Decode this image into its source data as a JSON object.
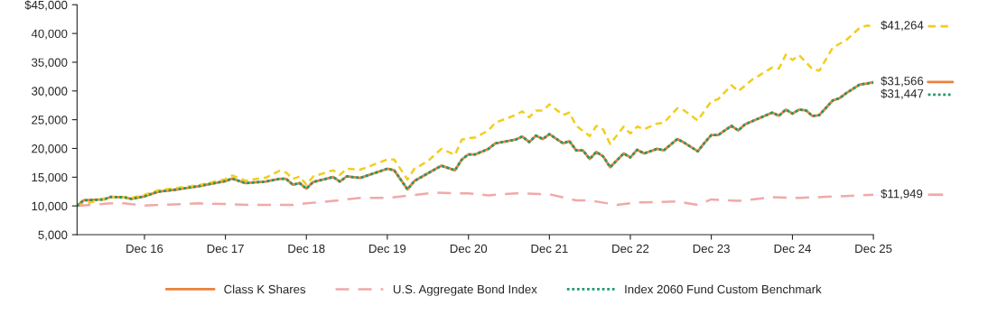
{
  "chart_data": {
    "type": "line",
    "xlim": [
      "2016-02",
      "2025-12"
    ],
    "xticks": [
      {
        "value": "2016-12",
        "label": "Dec 16"
      },
      {
        "value": "2017-12",
        "label": "Dec 17"
      },
      {
        "value": "2018-12",
        "label": "Dec 18"
      },
      {
        "value": "2019-12",
        "label": "Dec 19"
      },
      {
        "value": "2020-12",
        "label": "Dec 20"
      },
      {
        "value": "2021-12",
        "label": "Dec 21"
      },
      {
        "value": "2022-12",
        "label": "Dec 22"
      },
      {
        "value": "2023-12",
        "label": "Dec 23"
      },
      {
        "value": "2024-12",
        "label": "Dec 24"
      },
      {
        "value": "2025-12",
        "label": "Dec 25"
      }
    ],
    "ylim": [
      5000,
      45000
    ],
    "yticks": [
      {
        "value": 5000,
        "label": "5,000"
      },
      {
        "value": 10000,
        "label": "10,000"
      },
      {
        "value": 15000,
        "label": "15,000"
      },
      {
        "value": 20000,
        "label": "20,000"
      },
      {
        "value": 25000,
        "label": "25,000"
      },
      {
        "value": 30000,
        "label": "30,000"
      },
      {
        "value": 35000,
        "label": "35,000"
      },
      {
        "value": 40000,
        "label": "40,000"
      },
      {
        "value": 45000,
        "label": "$45,000"
      }
    ],
    "grid": false,
    "legend": "bottom",
    "series": [
      {
        "name": "Class K Shares",
        "color": "#e8823c",
        "line_style": "solid",
        "x": [
          "2016-02",
          "2016-03",
          "2016-06",
          "2016-07",
          "2016-09",
          "2016-10",
          "2016-12",
          "2017-02",
          "2017-05",
          "2017-08",
          "2017-12",
          "2018-01",
          "2018-03",
          "2018-06",
          "2018-08",
          "2018-09",
          "2018-10",
          "2018-11",
          "2018-12",
          "2019-01",
          "2019-04",
          "2019-05",
          "2019-06",
          "2019-08",
          "2019-12",
          "2020-01",
          "2020-03",
          "2020-04",
          "2020-06",
          "2020-08",
          "2020-10",
          "2020-11",
          "2020-12",
          "2021-01",
          "2021-03",
          "2021-04",
          "2021-07",
          "2021-08",
          "2021-09",
          "2021-10",
          "2021-11",
          "2021-12",
          "2022-02",
          "2022-03",
          "2022-04",
          "2022-05",
          "2022-06",
          "2022-07",
          "2022-08",
          "2022-09",
          "2022-11",
          "2022-12",
          "2023-01",
          "2023-02",
          "2023-04",
          "2023-05",
          "2023-07",
          "2023-08",
          "2023-10",
          "2023-11",
          "2023-12",
          "2024-01",
          "2024-03",
          "2024-04",
          "2024-05",
          "2024-09",
          "2024-10",
          "2024-11",
          "2024-12",
          "2025-01",
          "2025-02",
          "2025-03",
          "2025-04",
          "2025-06",
          "2025-07",
          "2025-08",
          "2025-10",
          "2025-11",
          "2025-12"
        ],
        "values": [
          10000,
          10970,
          11130,
          11560,
          11510,
          11240,
          11670,
          12470,
          12890,
          13430,
          14330,
          14760,
          13960,
          14230,
          14700,
          14700,
          13690,
          13960,
          13000,
          14170,
          15030,
          14230,
          15130,
          14870,
          16470,
          16200,
          12890,
          14330,
          15670,
          17000,
          16200,
          18070,
          18970,
          18970,
          19930,
          20890,
          21530,
          22070,
          21110,
          22230,
          21640,
          22490,
          20890,
          21270,
          19670,
          19670,
          18170,
          19400,
          18600,
          16730,
          19130,
          18440,
          19770,
          19130,
          19930,
          19670,
          21640,
          21000,
          19510,
          21000,
          22330,
          22330,
          23930,
          23130,
          24200,
          26230,
          25690,
          26760,
          26070,
          26760,
          26600,
          25640,
          25800,
          28360,
          28730,
          29640,
          31130,
          31290,
          31566
        ]
      },
      {
        "color": "#f2cd1f",
        "line_style": "dashed",
        "x": [
          "2016-02",
          "2016-07",
          "2016-10",
          "2016-12",
          "2017-02",
          "2017-08",
          "2017-12",
          "2018-01",
          "2018-03",
          "2018-06",
          "2018-08",
          "2018-09",
          "2018-10",
          "2018-11",
          "2018-12",
          "2019-01",
          "2019-04",
          "2019-05",
          "2019-06",
          "2019-08",
          "2019-12",
          "2020-01",
          "2020-03",
          "2020-04",
          "2020-06",
          "2020-08",
          "2020-10",
          "2020-11",
          "2020-12",
          "2021-01",
          "2021-03",
          "2021-04",
          "2021-07",
          "2021-08",
          "2021-09",
          "2021-10",
          "2021-11",
          "2021-12",
          "2022-02",
          "2022-03",
          "2022-04",
          "2022-06",
          "2022-07",
          "2022-08",
          "2022-09",
          "2022-11",
          "2022-12",
          "2023-01",
          "2023-02",
          "2023-04",
          "2023-05",
          "2023-07",
          "2023-08",
          "2023-10",
          "2023-11",
          "2023-12",
          "2024-01",
          "2024-03",
          "2024-04",
          "2024-06",
          "2024-09",
          "2024-10",
          "2024-11",
          "2024-12",
          "2025-01",
          "2025-03",
          "2025-04",
          "2025-06",
          "2025-08",
          "2025-10",
          "2025-11",
          "2025-12"
        ],
        "values": [
          10000,
          11560,
          11400,
          11930,
          12730,
          13600,
          14670,
          15300,
          14400,
          14930,
          16100,
          15800,
          14700,
          15130,
          13690,
          15130,
          16200,
          15400,
          16460,
          16300,
          18070,
          18070,
          14600,
          16460,
          17800,
          19930,
          18870,
          21530,
          21800,
          21900,
          23130,
          24470,
          25800,
          26440,
          25400,
          26600,
          26600,
          27670,
          25800,
          26230,
          23930,
          22170,
          23930,
          23270,
          20770,
          23800,
          22600,
          23800,
          23330,
          24330,
          24470,
          27000,
          26600,
          24870,
          26600,
          28200,
          28570,
          31000,
          29960,
          31930,
          34070,
          33900,
          36300,
          35400,
          36200,
          33800,
          33530,
          37530,
          38870,
          41000,
          41370,
          41264
        ]
      },
      {
        "name": "U.S. Aggregate Bond Index",
        "color": "#f0a9a9",
        "line_style": "longdash",
        "x": [
          "2016-02",
          "2016-07",
          "2016-09",
          "2016-12",
          "2017-08",
          "2017-12",
          "2018-04",
          "2018-10",
          "2018-12",
          "2019-04",
          "2019-08",
          "2019-12",
          "2020-03",
          "2020-07",
          "2020-10",
          "2020-12",
          "2021-03",
          "2021-07",
          "2021-12",
          "2022-04",
          "2022-06",
          "2022-10",
          "2023-01",
          "2023-07",
          "2023-10",
          "2023-12",
          "2024-04",
          "2024-09",
          "2025-01",
          "2025-07",
          "2025-12"
        ],
        "values": [
          10000,
          10440,
          10440,
          10070,
          10440,
          10330,
          10170,
          10170,
          10440,
          10870,
          11400,
          11400,
          11770,
          12300,
          12200,
          12200,
          11830,
          12200,
          12030,
          10970,
          10970,
          10170,
          10600,
          10770,
          10170,
          11130,
          10870,
          11500,
          11400,
          11670,
          11949
        ]
      },
      {
        "name": "Index 2060 Fund Custom Benchmark",
        "color": "#1f9a6a",
        "line_style": "dotted",
        "x": [
          "2016-02",
          "2016-03",
          "2016-06",
          "2016-07",
          "2016-09",
          "2016-10",
          "2016-12",
          "2017-02",
          "2017-05",
          "2017-08",
          "2017-12",
          "2018-01",
          "2018-03",
          "2018-06",
          "2018-08",
          "2018-09",
          "2018-10",
          "2018-11",
          "2018-12",
          "2019-01",
          "2019-04",
          "2019-05",
          "2019-06",
          "2019-08",
          "2019-12",
          "2020-01",
          "2020-03",
          "2020-04",
          "2020-06",
          "2020-08",
          "2020-10",
          "2020-11",
          "2020-12",
          "2021-01",
          "2021-03",
          "2021-04",
          "2021-07",
          "2021-08",
          "2021-09",
          "2021-10",
          "2021-11",
          "2021-12",
          "2022-02",
          "2022-03",
          "2022-04",
          "2022-05",
          "2022-06",
          "2022-07",
          "2022-08",
          "2022-09",
          "2022-11",
          "2022-12",
          "2023-01",
          "2023-02",
          "2023-04",
          "2023-05",
          "2023-07",
          "2023-08",
          "2023-10",
          "2023-11",
          "2023-12",
          "2024-01",
          "2024-03",
          "2024-04",
          "2024-05",
          "2024-09",
          "2024-10",
          "2024-11",
          "2024-12",
          "2025-01",
          "2025-02",
          "2025-03",
          "2025-04",
          "2025-06",
          "2025-07",
          "2025-08",
          "2025-10",
          "2025-11",
          "2025-12"
        ],
        "values": [
          10000,
          10970,
          11130,
          11560,
          11510,
          11240,
          11670,
          12470,
          12890,
          13430,
          14330,
          14760,
          13960,
          14230,
          14700,
          14700,
          13690,
          13960,
          13000,
          14170,
          15030,
          14230,
          15130,
          14870,
          16470,
          16200,
          12890,
          14330,
          15670,
          17000,
          16200,
          18070,
          18970,
          18970,
          19930,
          20890,
          21530,
          22070,
          21110,
          22230,
          21640,
          22490,
          20890,
          21270,
          19670,
          19670,
          18170,
          19400,
          18600,
          16730,
          19130,
          18440,
          19770,
          19130,
          19930,
          19670,
          21640,
          21000,
          19510,
          21000,
          22330,
          22330,
          23930,
          23130,
          24200,
          26230,
          25690,
          26760,
          26070,
          26760,
          26600,
          25640,
          25800,
          28360,
          28730,
          29640,
          31130,
          31290,
          31447
        ]
      }
    ],
    "annotations": [
      {
        "text": "$41,264",
        "x": "2025-12",
        "y": 41264
      },
      {
        "text": "$31,566",
        "x": "2025-12",
        "y": 31566
      },
      {
        "text": "$31,447",
        "x": "2025-12",
        "y": 31447
      },
      {
        "text": "$11,949",
        "x": "2025-12",
        "y": 11949
      }
    ]
  }
}
